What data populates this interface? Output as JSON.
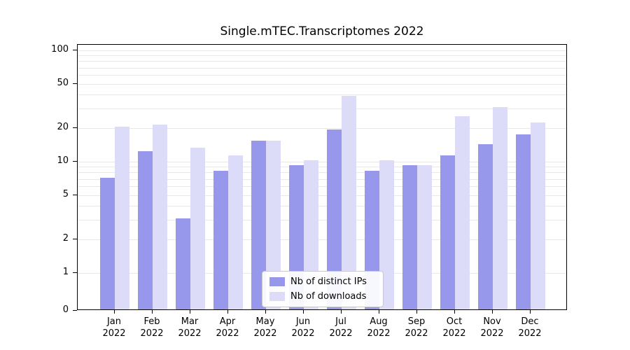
{
  "chart_data": {
    "type": "bar",
    "title": "Single.mTEC.Transcriptomes 2022",
    "categories": [
      "Jan 2022",
      "Feb 2022",
      "Mar 2022",
      "Apr 2022",
      "May 2022",
      "Jun 2022",
      "Jul 2022",
      "Aug 2022",
      "Sep 2022",
      "Oct 2022",
      "Nov 2022",
      "Dec 2022"
    ],
    "series": [
      {
        "name": "Nb of distinct IPs",
        "color": "#9797ec",
        "values": [
          7,
          12,
          3,
          8,
          15,
          9,
          19,
          8,
          9,
          11,
          14,
          17
        ]
      },
      {
        "name": "Nb of downloads",
        "color": "#dcdcf9",
        "values": [
          20,
          21,
          13,
          11,
          15,
          10,
          38,
          10,
          9,
          25,
          30,
          22
        ]
      }
    ],
    "xlabel": "",
    "ylabel": "",
    "yscale": "symlog",
    "ylim": [
      0,
      100
    ],
    "yticks": [
      100,
      50,
      20,
      10,
      5,
      2,
      1,
      0
    ],
    "grid_lines": [
      1,
      2,
      3,
      4,
      5,
      6,
      7,
      8,
      9,
      10,
      20,
      30,
      40,
      50,
      60,
      70,
      80,
      90,
      100
    ],
    "grid": "on",
    "legend_position": "lower center inside plot",
    "colors": {
      "grid": "#e8e8e8",
      "axis": "#000000",
      "background": "#ffffff"
    }
  }
}
